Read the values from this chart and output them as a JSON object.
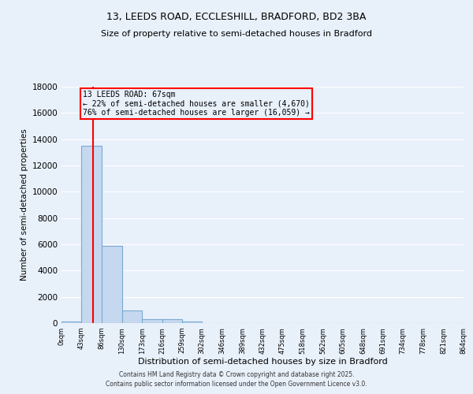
{
  "title1": "13, LEEDS ROAD, ECCLESHILL, BRADFORD, BD2 3BA",
  "title2": "Size of property relative to semi-detached houses in Bradford",
  "xlabel": "Distribution of semi-detached houses by size in Bradford",
  "ylabel": "Number of semi-detached properties",
  "bin_edges": [
    0,
    43,
    86,
    130,
    173,
    216,
    259,
    302,
    346,
    389,
    432,
    475,
    518,
    562,
    605,
    648,
    691,
    734,
    778,
    821,
    864
  ],
  "bin_counts": [
    150,
    13500,
    5900,
    950,
    300,
    300,
    130,
    0,
    0,
    0,
    0,
    0,
    0,
    0,
    0,
    0,
    0,
    0,
    0,
    0
  ],
  "property_size": 67,
  "annotation_title": "13 LEEDS ROAD: 67sqm",
  "annotation_line1": "← 22% of semi-detached houses are smaller (4,670)",
  "annotation_line2": "76% of semi-detached houses are larger (16,059) →",
  "bar_color": "#c5d8f0",
  "bar_edge_color": "#7aaad4",
  "vline_color": "red",
  "annotation_box_edge": "red",
  "ylim": [
    0,
    18000
  ],
  "yticks": [
    0,
    2000,
    4000,
    6000,
    8000,
    10000,
    12000,
    14000,
    16000,
    18000
  ],
  "background_color": "#e8f0fa",
  "grid_color": "#ffffff",
  "footer1": "Contains HM Land Registry data © Crown copyright and database right 2025.",
  "footer2": "Contains public sector information licensed under the Open Government Licence v3.0."
}
